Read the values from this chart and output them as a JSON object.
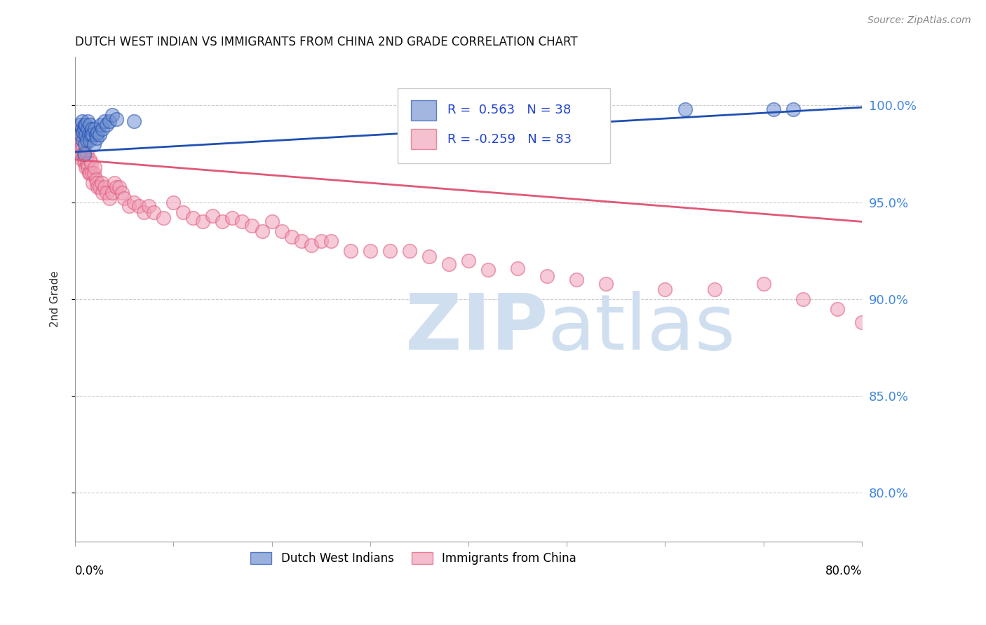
{
  "title": "DUTCH WEST INDIAN VS IMMIGRANTS FROM CHINA 2ND GRADE CORRELATION CHART",
  "source": "Source: ZipAtlas.com",
  "ylabel": "2nd Grade",
  "ytick_labels": [
    "100.0%",
    "95.0%",
    "90.0%",
    "85.0%",
    "80.0%"
  ],
  "ytick_values": [
    1.0,
    0.95,
    0.9,
    0.85,
    0.8
  ],
  "xlim": [
    0.0,
    0.8
  ],
  "ylim": [
    0.775,
    1.025
  ],
  "blue_R": 0.563,
  "blue_N": 38,
  "pink_R": -0.259,
  "pink_N": 83,
  "blue_color": "#7090d0",
  "pink_color": "#f0a0b8",
  "blue_line_color": "#2050b0",
  "pink_line_color": "#e05878",
  "legend_label_blue": "Dutch West Indians",
  "legend_label_pink": "Immigrants from China",
  "watermark_color": "#d0dff0",
  "blue_x": [
    0.005,
    0.006,
    0.007,
    0.007,
    0.008,
    0.008,
    0.009,
    0.009,
    0.01,
    0.01,
    0.011,
    0.011,
    0.012,
    0.013,
    0.013,
    0.014,
    0.015,
    0.015,
    0.016,
    0.017,
    0.018,
    0.019,
    0.02,
    0.021,
    0.022,
    0.023,
    0.025,
    0.026,
    0.028,
    0.03,
    0.032,
    0.035,
    0.038,
    0.042,
    0.06,
    0.62,
    0.71,
    0.73
  ],
  "blue_y": [
    0.99,
    0.985,
    0.988,
    0.992,
    0.982,
    0.986,
    0.975,
    0.988,
    0.98,
    0.99,
    0.985,
    0.99,
    0.982,
    0.988,
    0.992,
    0.985,
    0.99,
    0.982,
    0.985,
    0.988,
    0.985,
    0.98,
    0.988,
    0.985,
    0.983,
    0.986,
    0.985,
    0.99,
    0.988,
    0.992,
    0.99,
    0.992,
    0.995,
    0.993,
    0.992,
    0.998,
    0.998,
    0.998
  ],
  "pink_x": [
    0.003,
    0.004,
    0.005,
    0.006,
    0.006,
    0.007,
    0.007,
    0.008,
    0.008,
    0.009,
    0.01,
    0.01,
    0.011,
    0.011,
    0.012,
    0.012,
    0.013,
    0.013,
    0.014,
    0.015,
    0.015,
    0.016,
    0.017,
    0.018,
    0.019,
    0.02,
    0.021,
    0.022,
    0.023,
    0.025,
    0.027,
    0.028,
    0.03,
    0.032,
    0.035,
    0.038,
    0.04,
    0.042,
    0.045,
    0.048,
    0.05,
    0.055,
    0.06,
    0.065,
    0.07,
    0.075,
    0.08,
    0.09,
    0.1,
    0.11,
    0.12,
    0.13,
    0.14,
    0.15,
    0.16,
    0.17,
    0.18,
    0.19,
    0.2,
    0.21,
    0.22,
    0.23,
    0.24,
    0.25,
    0.26,
    0.28,
    0.3,
    0.32,
    0.34,
    0.36,
    0.38,
    0.4,
    0.42,
    0.45,
    0.48,
    0.51,
    0.54,
    0.6,
    0.65,
    0.7,
    0.74,
    0.775,
    0.8
  ],
  "pink_y": [
    0.988,
    0.985,
    0.982,
    0.978,
    0.975,
    0.98,
    0.972,
    0.978,
    0.975,
    0.972,
    0.975,
    0.97,
    0.974,
    0.968,
    0.975,
    0.97,
    0.97,
    0.968,
    0.965,
    0.972,
    0.965,
    0.97,
    0.965,
    0.96,
    0.965,
    0.968,
    0.962,
    0.96,
    0.958,
    0.958,
    0.96,
    0.955,
    0.958,
    0.955,
    0.952,
    0.955,
    0.96,
    0.958,
    0.958,
    0.955,
    0.952,
    0.948,
    0.95,
    0.948,
    0.945,
    0.948,
    0.945,
    0.942,
    0.95,
    0.945,
    0.942,
    0.94,
    0.943,
    0.94,
    0.942,
    0.94,
    0.938,
    0.935,
    0.94,
    0.935,
    0.932,
    0.93,
    0.928,
    0.93,
    0.93,
    0.925,
    0.925,
    0.925,
    0.925,
    0.922,
    0.918,
    0.92,
    0.915,
    0.916,
    0.912,
    0.91,
    0.908,
    0.905,
    0.905,
    0.908,
    0.9,
    0.895,
    0.888
  ]
}
